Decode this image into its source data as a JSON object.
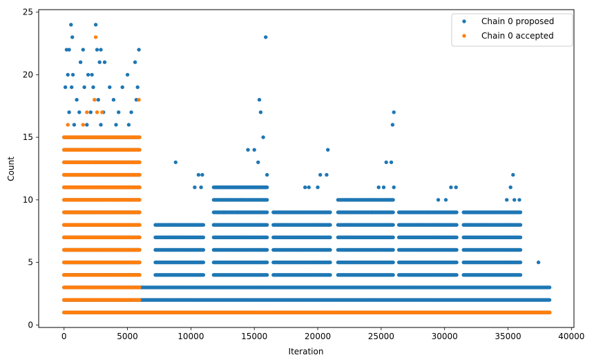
{
  "chart_data": {
    "type": "scatter",
    "title": "",
    "xlabel": "Iteration",
    "ylabel": "Count",
    "xlim": [
      -2000,
      40200
    ],
    "ylim": [
      -0.2,
      25.2
    ],
    "xticks": [
      0,
      5000,
      10000,
      15000,
      20000,
      25000,
      30000,
      35000,
      40000
    ],
    "xtick_labels": [
      "0",
      "5000",
      "10000",
      "15000",
      "20000",
      "25000",
      "30000",
      "35000",
      "40000"
    ],
    "yticks": [
      0,
      5,
      10,
      15,
      20,
      25
    ],
    "ytick_labels": [
      "0",
      "5",
      "10",
      "15",
      "20",
      "25"
    ],
    "grid": false,
    "legend_position": "upper right",
    "series": [
      {
        "name": "Chain 0 proposed",
        "color": "#1f77b4",
        "points": [
          [
            200,
            22
          ],
          [
            400,
            22
          ],
          [
            550,
            24
          ],
          [
            650,
            23
          ],
          [
            1500,
            22
          ],
          [
            2500,
            24
          ],
          [
            2600,
            22
          ],
          [
            2900,
            22
          ],
          [
            300,
            20
          ],
          [
            700,
            20
          ],
          [
            1300,
            21
          ],
          [
            1900,
            20
          ],
          [
            2200,
            20
          ],
          [
            2800,
            21
          ],
          [
            3200,
            21
          ],
          [
            5000,
            20
          ],
          [
            5600,
            21
          ],
          [
            5900,
            22
          ],
          [
            100,
            19
          ],
          [
            600,
            19
          ],
          [
            1600,
            19
          ],
          [
            2300,
            19
          ],
          [
            3600,
            19
          ],
          [
            4600,
            19
          ],
          [
            5800,
            19
          ],
          [
            1000,
            18
          ],
          [
            2700,
            18
          ],
          [
            3900,
            18
          ],
          [
            5700,
            18
          ],
          [
            400,
            17
          ],
          [
            1200,
            17
          ],
          [
            2100,
            17
          ],
          [
            3100,
            17
          ],
          [
            4300,
            17
          ],
          [
            5300,
            17
          ],
          [
            800,
            16
          ],
          [
            1800,
            16
          ],
          [
            2900,
            16
          ],
          [
            4100,
            16
          ],
          [
            5100,
            16
          ],
          [
            8800,
            13
          ],
          [
            10600,
            12
          ],
          [
            10900,
            12
          ],
          [
            15400,
            18
          ],
          [
            15500,
            17
          ],
          [
            15700,
            15
          ],
          [
            15900,
            23
          ],
          [
            14500,
            14
          ],
          [
            15000,
            14
          ],
          [
            15300,
            13
          ],
          [
            16000,
            12
          ],
          [
            20200,
            12
          ],
          [
            20700,
            12
          ],
          [
            20800,
            14
          ],
          [
            25400,
            13
          ],
          [
            25800,
            13
          ],
          [
            25900,
            16
          ],
          [
            26000,
            17
          ],
          [
            30500,
            11
          ],
          [
            30900,
            11
          ],
          [
            35400,
            12
          ],
          [
            35200,
            11
          ],
          [
            10300,
            11
          ],
          [
            10800,
            11
          ],
          [
            13000,
            10
          ],
          [
            14000,
            10
          ],
          [
            15800,
            11
          ],
          [
            19000,
            11
          ],
          [
            19300,
            11
          ],
          [
            20000,
            11
          ],
          [
            24800,
            11
          ],
          [
            25200,
            11
          ],
          [
            26000,
            11
          ],
          [
            29500,
            10
          ],
          [
            30100,
            10
          ],
          [
            34900,
            10
          ],
          [
            35500,
            10
          ],
          [
            35900,
            10
          ],
          [
            12600,
            9
          ],
          [
            13700,
            9
          ],
          [
            17300,
            8
          ],
          [
            22500,
            8
          ],
          [
            24300,
            9
          ],
          [
            27900,
            8
          ],
          [
            28700,
            9
          ],
          [
            33300,
            8
          ],
          [
            37400,
            5
          ]
        ],
        "clusters": [
          {
            "x": [
              0,
              6000
            ],
            "y": [
              1,
              15
            ]
          },
          {
            "x": [
              6000,
              38300
            ],
            "y": [
              1,
              2
            ]
          },
          {
            "x": [
              6000,
              38300
            ],
            "y": [
              3,
              3
            ]
          },
          {
            "x": [
              7200,
              11000
            ],
            "y": [
              4,
              8
            ]
          },
          {
            "x": [
              11800,
              16000
            ],
            "y": [
              4,
              11
            ]
          },
          {
            "x": [
              16500,
              21000
            ],
            "y": [
              4,
              9
            ]
          },
          {
            "x": [
              21600,
              26000
            ],
            "y": [
              4,
              10
            ]
          },
          {
            "x": [
              26400,
              31000
            ],
            "y": [
              4,
              9
            ]
          },
          {
            "x": [
              31500,
              36000
            ],
            "y": [
              4,
              9
            ]
          }
        ]
      },
      {
        "name": "Chain 0 accepted",
        "color": "#ff7f0e",
        "points": [
          [
            2500,
            23
          ],
          [
            2400,
            18
          ],
          [
            5900,
            18
          ],
          [
            1800,
            17
          ],
          [
            3000,
            17
          ],
          [
            2600,
            17
          ],
          [
            300,
            16
          ],
          [
            1500,
            16
          ]
        ],
        "clusters": [
          {
            "x": [
              0,
              6000
            ],
            "y": [
              3,
              15
            ]
          },
          {
            "x": [
              0,
              38300
            ],
            "y": [
              1,
              1
            ]
          },
          {
            "x": [
              0,
              6000
            ],
            "y": [
              2,
              2
            ]
          }
        ]
      }
    ]
  }
}
